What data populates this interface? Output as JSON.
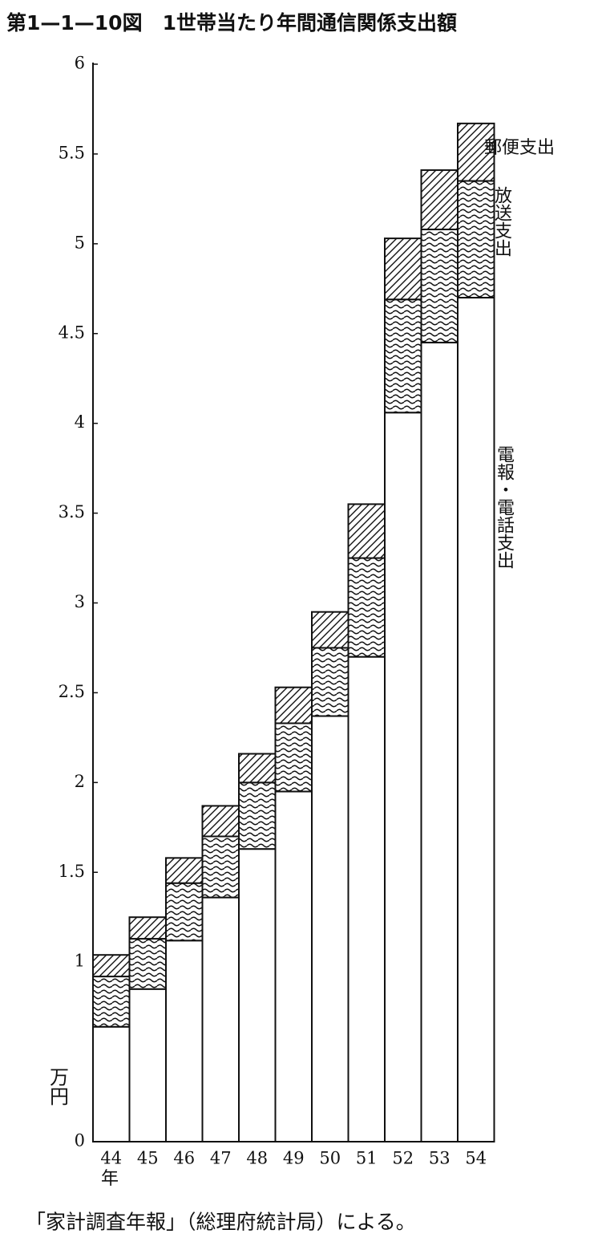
{
  "chart_data": {
    "type": "stacked_bar",
    "title": "第1—1—10図　1世帯当たり年間通信関係支出額",
    "y_unit": "万円",
    "x_unit": "年",
    "note": "「家計調査年報」（総理府統計局）による。",
    "categories": [
      "44",
      "45",
      "46",
      "47",
      "48",
      "49",
      "50",
      "51",
      "52",
      "53",
      "54"
    ],
    "series": [
      {
        "name": "電報・電話支出",
        "color": "#ffffff",
        "pattern": "none",
        "values": [
          0.64,
          0.85,
          1.12,
          1.36,
          1.63,
          1.95,
          2.37,
          2.7,
          4.06,
          4.45,
          4.7
        ]
      },
      {
        "name": "放送支出",
        "color": "#ffffff",
        "pattern": "wave",
        "values": [
          0.28,
          0.28,
          0.32,
          0.34,
          0.37,
          0.38,
          0.38,
          0.55,
          0.63,
          0.63,
          0.65
        ]
      },
      {
        "name": "郵便支出",
        "color": "#ffffff",
        "pattern": "hatch",
        "values": [
          0.12,
          0.12,
          0.14,
          0.17,
          0.16,
          0.2,
          0.2,
          0.3,
          0.34,
          0.33,
          0.32
        ]
      }
    ],
    "ylim": [
      0,
      6
    ],
    "yticks": [
      0,
      1,
      1.5,
      2,
      2.5,
      3,
      3.5,
      4,
      4.5,
      5,
      5.5,
      6
    ]
  }
}
